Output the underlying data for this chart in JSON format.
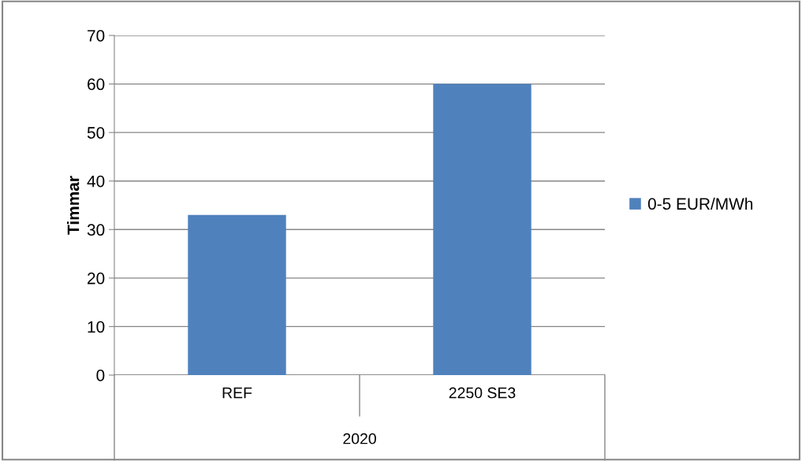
{
  "chart_data": {
    "type": "bar",
    "ylabel": "Timmar",
    "xlabel": "2020",
    "categories": [
      "REF",
      "2250 SE3"
    ],
    "series": [
      {
        "name": "0-5 EUR/MWh",
        "color": "#4f81bd",
        "values": [
          33,
          60
        ]
      }
    ],
    "ylim": [
      0,
      70
    ],
    "yticks": [
      0,
      10,
      20,
      30,
      40,
      50,
      60,
      70
    ],
    "grid": "y",
    "legend": "right"
  }
}
